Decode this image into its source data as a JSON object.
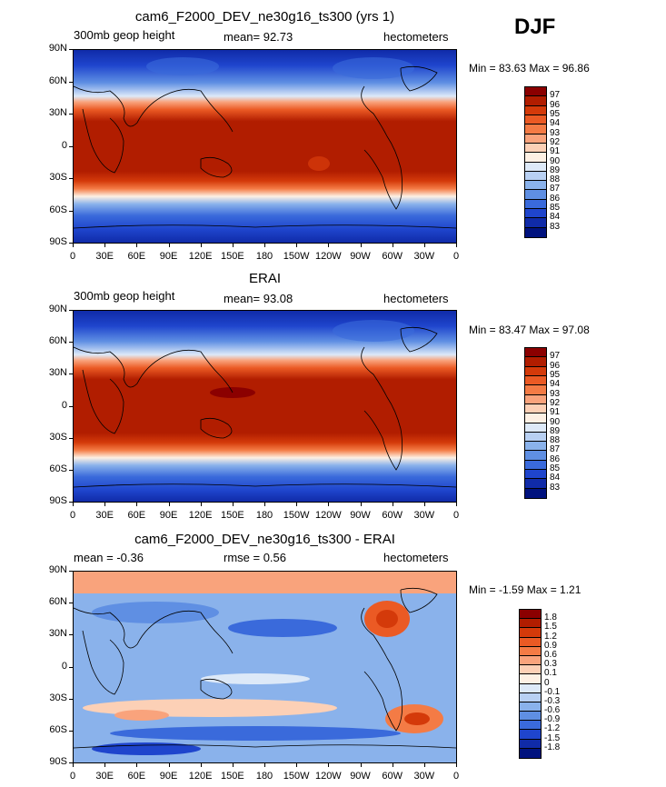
{
  "season": "DJF",
  "y_ticks": [
    "90N",
    "60N",
    "30N",
    "0",
    "30S",
    "60S",
    "90S"
  ],
  "x_ticks": [
    "0",
    "30E",
    "60E",
    "90E",
    "120E",
    "150E",
    "180",
    "150W",
    "120W",
    "90W",
    "60W",
    "30W",
    "0"
  ],
  "panels": [
    {
      "title": "cam6_F2000_DEV_ne30g16_ts300 (yrs 1)",
      "left_label": "300mb geop height",
      "stat1": "mean=  92.73",
      "stat2": "",
      "right_label": "hectometers",
      "minmax": "Min =  83.63 Max =  96.86"
    },
    {
      "title": "ERAI",
      "left_label": "300mb geop height",
      "stat1": "mean=  93.08",
      "stat2": "",
      "right_label": "hectometers",
      "minmax": "Min =  83.47 Max =  97.08"
    },
    {
      "title": "cam6_F2000_DEV_ne30g16_ts300 - ERAI",
      "left_label": "mean =  -0.36",
      "stat1": "rmse =   0.56",
      "stat2": "",
      "right_label": "hectometers",
      "minmax": "Min =  -1.59 Max =   1.21"
    }
  ],
  "colorbar_abs": {
    "labels": [
      "97",
      "96",
      "95",
      "94",
      "93",
      "92",
      "91",
      "90",
      "89",
      "88",
      "87",
      "86",
      "85",
      "84",
      "83"
    ],
    "colors": [
      "#8b0000",
      "#b11d00",
      "#d43a0a",
      "#eb5a24",
      "#f47b45",
      "#f9a37c",
      "#fcd0b6",
      "#fdf0e4",
      "#dde9f8",
      "#b8d0f3",
      "#8ab2eb",
      "#5f8fe3",
      "#3a6adb",
      "#1f45cd",
      "#102ba8",
      "#00127e"
    ]
  },
  "colorbar_diff": {
    "labels": [
      "1.8",
      "1.5",
      "1.2",
      "0.9",
      "0.6",
      "0.3",
      "0.1",
      "0",
      "-0.1",
      "-0.3",
      "-0.6",
      "-0.9",
      "-1.2",
      "-1.5",
      "-1.8"
    ],
    "colors": [
      "#8b0000",
      "#b11d00",
      "#d43a0a",
      "#eb5a24",
      "#f47b45",
      "#f9a37c",
      "#fcd0b6",
      "#fdf0e4",
      "#dde9f8",
      "#b8d0f3",
      "#8ab2eb",
      "#5f8fe3",
      "#3a6adb",
      "#1f45cd",
      "#102ba8",
      "#00127e"
    ]
  },
  "chart_data": [
    {
      "type": "heatmap",
      "title": "cam6_F2000_DEV_ne30g16_ts300 (yrs 1)",
      "variable": "300mb geop height",
      "units": "hectometers",
      "mean": 92.73,
      "min": 83.63,
      "max": 96.86,
      "lat_range": [
        -90,
        90
      ],
      "lon_range": [
        0,
        360
      ],
      "zonal_profile": {
        "lat": [
          90,
          60,
          45,
          30,
          15,
          0,
          -15,
          -30,
          -45,
          -60,
          -75,
          -90
        ],
        "value": [
          84.5,
          85.5,
          88.5,
          93.0,
          96.0,
          96.3,
          96.2,
          95.0,
          91.5,
          87.0,
          84.5,
          83.8
        ]
      },
      "contour_levels": [
        83,
        84,
        85,
        86,
        87,
        88,
        89,
        90,
        91,
        92,
        93,
        94,
        95,
        96,
        97
      ]
    },
    {
      "type": "heatmap",
      "title": "ERAI",
      "variable": "300mb geop height",
      "units": "hectometers",
      "mean": 93.08,
      "min": 83.47,
      "max": 97.08,
      "lat_range": [
        -90,
        90
      ],
      "lon_range": [
        0,
        360
      ],
      "zonal_profile": {
        "lat": [
          90,
          60,
          45,
          30,
          15,
          0,
          -15,
          -30,
          -45,
          -60,
          -75,
          -90
        ],
        "value": [
          84.5,
          86.0,
          89.0,
          93.5,
          96.2,
          96.5,
          96.3,
          95.3,
          92.0,
          87.5,
          85.0,
          84.0
        ]
      },
      "contour_levels": [
        83,
        84,
        85,
        86,
        87,
        88,
        89,
        90,
        91,
        92,
        93,
        94,
        95,
        96,
        97
      ]
    },
    {
      "type": "heatmap",
      "title": "cam6_F2000_DEV_ne30g16_ts300 - ERAI",
      "variable": "300mb geop height",
      "units": "hectometers",
      "mean": -0.36,
      "rmse": 0.56,
      "min": -1.59,
      "max": 1.21,
      "lat_range": [
        -90,
        90
      ],
      "lon_range": [
        0,
        360
      ],
      "zonal_profile": {
        "lat": [
          90,
          60,
          45,
          30,
          15,
          0,
          -15,
          -30,
          -45,
          -60,
          -75,
          -90
        ],
        "value": [
          0.4,
          -0.6,
          -0.6,
          -0.5,
          -0.3,
          -0.2,
          -0.2,
          -0.3,
          0.2,
          -0.6,
          -0.9,
          -0.5
        ]
      },
      "contour_levels": [
        -1.8,
        -1.5,
        -1.2,
        -0.9,
        -0.6,
        -0.3,
        -0.1,
        0,
        0.1,
        0.3,
        0.6,
        0.9,
        1.2,
        1.5,
        1.8
      ]
    }
  ]
}
